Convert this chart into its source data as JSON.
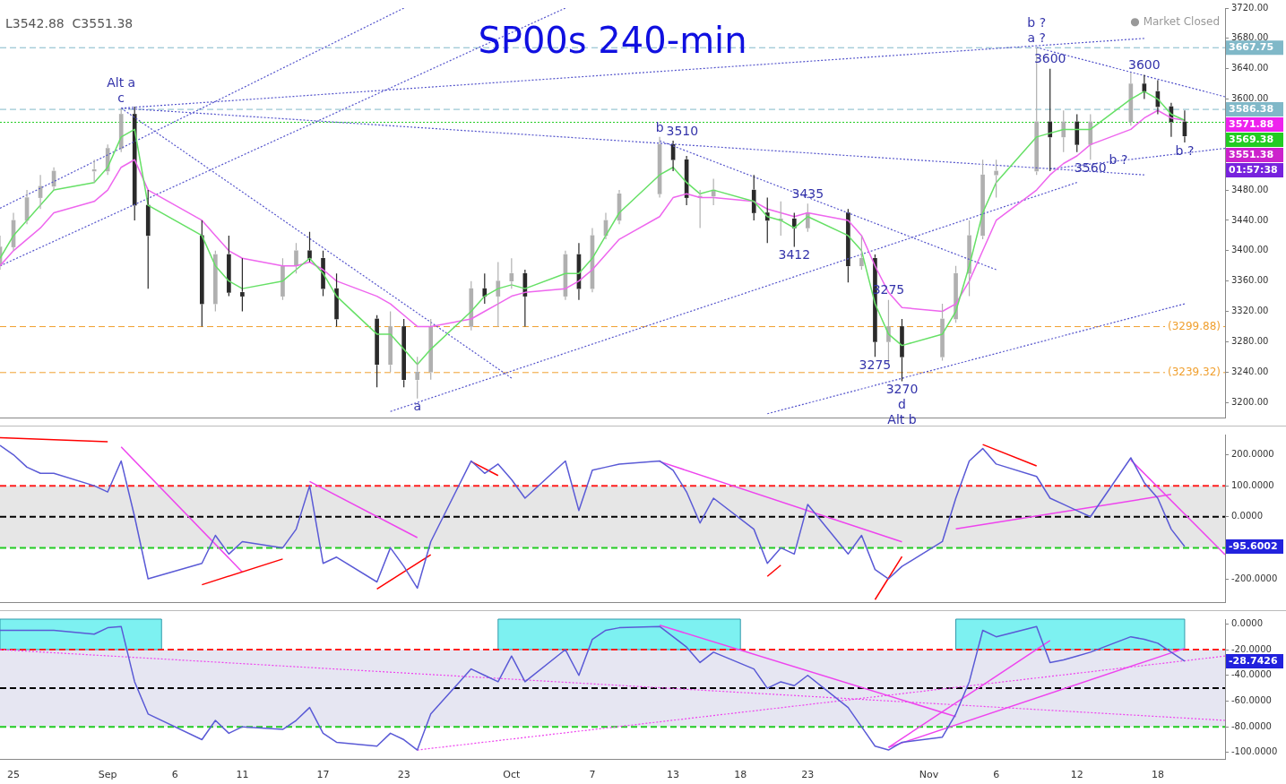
{
  "chart_data": [
    {
      "type": "candlestick",
      "title": "SP00s 240-min",
      "colors": [
        "#b0b0b0",
        "#b0b0b0",
        "#b0b0b0",
        "#b0b0b0",
        "#b0b0b0",
        "#b0b0b0",
        "#b0b0b0",
        "#b0b0b0",
        "#2a2a2a",
        "#2a2a2a",
        "#2a2a2a",
        "#b0b0b0",
        "#2a2a2a",
        "#2a2a2a",
        "#b0b0b0",
        "#b0b0b0",
        "#2a2a2a",
        "#2a2a2a",
        "#2a2a2a",
        "#2a2a2a",
        "#b0b0b0",
        "#2a2a2a",
        "#b0b0b0",
        "#b0b0b0",
        "#b0b0b0",
        "#2a2a2a",
        "#b0b0b0",
        "#b0b0b0",
        "#2a2a2a",
        "#b0b0b0",
        "#2a2a2a",
        "#b0b0b0",
        "#b0b0b0",
        "#b0b0b0",
        "#b0b0b0",
        "#2a2a2a",
        "#2a2a2a",
        "#b0b0b0",
        "#b0b0b0",
        "#2a2a2a",
        "#2a2a2a",
        "#b0b0b0",
        "#2a2a2a",
        "#b0b0b0",
        "#2a2a2a",
        "#b0b0b0",
        "#2a2a2a",
        "#b0b0b0",
        "#2a2a2a",
        "#b0b0b0",
        "#b0b0b0",
        "#b0b0b0",
        "#b0b0b0",
        "#b0b0b0",
        "#b0b0b0",
        "#2a2a2a",
        "#b0b0b0",
        "#2a2a2a",
        "#b0b0b0",
        "#b0b0b0",
        "#2a2a2a",
        "#2a2a2a",
        "#2a2a2a",
        "#2a2a2a"
      ],
      "marker": "none",
      "tick_labels": "y",
      "x": [
        "--08-24",
        "--08-25",
        "--08-26",
        "--08-27",
        "--08-28",
        "--08-31",
        "--09-01",
        "--09-02",
        "--09-03",
        "--09-04",
        "--09-08",
        "--09-09",
        "--09-10",
        "--09-11",
        "--09-14",
        "--09-15",
        "--09-16",
        "--09-17",
        "--09-18",
        "--09-21",
        "--09-22",
        "--09-23",
        "--09-24",
        "--09-25",
        "--09-28",
        "--09-29",
        "--09-30",
        "--10-01",
        "--10-02",
        "--10-05",
        "--10-06",
        "--10-07",
        "--10-08",
        "--10-09",
        "--10-12",
        "--10-13",
        "--10-14",
        "--10-15",
        "--10-16",
        "--10-19",
        "--10-20",
        "--10-21",
        "--10-22",
        "--10-23",
        "--10-26",
        "--10-27",
        "--10-28",
        "--10-29",
        "--10-30",
        "--11-02",
        "--11-03",
        "--11-04",
        "--11-05",
        "--11-06",
        "--11-09",
        "--11-10",
        "--11-11",
        "--11-12",
        "--11-13",
        "--11-16",
        "--11-17",
        "--11-18",
        "--11-19",
        "--11-20"
      ],
      "ohlc": [
        [
          3380,
          3420,
          3375,
          3405
        ],
        [
          3405,
          3450,
          3400,
          3440
        ],
        [
          3440,
          3480,
          3435,
          3470
        ],
        [
          3470,
          3500,
          3455,
          3485
        ],
        [
          3485,
          3510,
          3480,
          3505
        ],
        [
          3505,
          3520,
          3490,
          3507
        ],
        [
          3505,
          3540,
          3500,
          3535
        ],
        [
          3535,
          3588,
          3530,
          3580
        ],
        [
          3580,
          3590,
          3440,
          3460
        ],
        [
          3460,
          3480,
          3350,
          3420
        ],
        [
          3420,
          3440,
          3300,
          3330
        ],
        [
          3330,
          3400,
          3320,
          3395
        ],
        [
          3395,
          3420,
          3340,
          3345
        ],
        [
          3345,
          3390,
          3320,
          3340
        ],
        [
          3340,
          3390,
          3335,
          3380
        ],
        [
          3380,
          3410,
          3370,
          3400
        ],
        [
          3400,
          3425,
          3385,
          3390
        ],
        [
          3390,
          3400,
          3340,
          3350
        ],
        [
          3350,
          3370,
          3300,
          3310
        ],
        [
          3310,
          3315,
          3220,
          3250
        ],
        [
          3250,
          3320,
          3240,
          3300
        ],
        [
          3300,
          3310,
          3220,
          3230
        ],
        [
          3230,
          3260,
          3205,
          3240
        ],
        [
          3240,
          3310,
          3230,
          3300
        ],
        [
          3300,
          3360,
          3295,
          3350
        ],
        [
          3350,
          3370,
          3330,
          3340
        ],
        [
          3340,
          3385,
          3300,
          3360
        ],
        [
          3360,
          3390,
          3350,
          3370
        ],
        [
          3370,
          3375,
          3300,
          3340
        ],
        [
          3340,
          3400,
          3335,
          3395
        ],
        [
          3395,
          3410,
          3335,
          3350
        ],
        [
          3350,
          3430,
          3345,
          3420
        ],
        [
          3420,
          3450,
          3415,
          3440
        ],
        [
          3440,
          3480,
          3435,
          3475
        ],
        [
          3475,
          3550,
          3470,
          3540
        ],
        [
          3540,
          3545,
          3505,
          3520
        ],
        [
          3520,
          3525,
          3460,
          3470
        ],
        [
          3470,
          3480,
          3430,
          3472
        ],
        [
          3472,
          3495,
          3460,
          3480
        ],
        [
          3480,
          3500,
          3440,
          3450
        ],
        [
          3450,
          3470,
          3410,
          3440
        ],
        [
          3440,
          3465,
          3420,
          3442
        ],
        [
          3442,
          3450,
          3405,
          3430
        ],
        [
          3430,
          3462,
          3425,
          3450
        ],
        [
          3450,
          3455,
          3358,
          3380
        ],
        [
          3380,
          3420,
          3375,
          3390
        ],
        [
          3390,
          3395,
          3260,
          3280
        ],
        [
          3280,
          3335,
          3250,
          3300
        ],
        [
          3300,
          3310,
          3228,
          3260
        ],
        [
          3260,
          3330,
          3255,
          3310
        ],
        [
          3310,
          3380,
          3305,
          3370
        ],
        [
          3370,
          3440,
          3340,
          3420
        ],
        [
          3420,
          3520,
          3415,
          3500
        ],
        [
          3500,
          3520,
          3470,
          3505
        ],
        [
          3505,
          3667.75,
          3500,
          3570
        ],
        [
          3570,
          3640,
          3505,
          3550
        ],
        [
          3550,
          3585,
          3530,
          3570
        ],
        [
          3570,
          3580,
          3530,
          3540
        ],
        [
          3540,
          3580,
          3520,
          3570
        ],
        [
          3570,
          3635,
          3565,
          3620
        ],
        [
          3620,
          3632,
          3600,
          3610
        ],
        [
          3610,
          3625,
          3580,
          3590
        ],
        [
          3590,
          3595,
          3550,
          3570
        ],
        [
          3570,
          3585,
          3542.88,
          3551.38
        ]
      ],
      "series": [
        {
          "type": "line",
          "color": "#66e066",
          "line_style": "solid",
          "values": [
            3390,
            3420,
            3440,
            3460,
            3480,
            3490,
            3510,
            3550,
            3560,
            3460,
            3420,
            3380,
            3360,
            3350,
            3360,
            3375,
            3390,
            3370,
            3340,
            3290,
            3290,
            3270,
            3250,
            3270,
            3320,
            3340,
            3350,
            3355,
            3350,
            3370,
            3370,
            3390,
            3420,
            3450,
            3500,
            3510,
            3490,
            3475,
            3480,
            3465,
            3445,
            3440,
            3430,
            3445,
            3420,
            3400,
            3330,
            3290,
            3275,
            3290,
            3320,
            3380,
            3450,
            3490,
            3550,
            3555,
            3560,
            3560,
            3560,
            3600,
            3610,
            3600,
            3580,
            3572
          ]
        },
        {
          "type": "line",
          "color": "#ee66ee",
          "line_style": "solid",
          "values": [
            3380,
            3400,
            3415,
            3430,
            3450,
            3465,
            3480,
            3510,
            3520,
            3480,
            3440,
            3420,
            3400,
            3390,
            3380,
            3380,
            3385,
            3375,
            3360,
            3340,
            3330,
            3315,
            3300,
            3300,
            3310,
            3320,
            3330,
            3340,
            3345,
            3350,
            3360,
            3375,
            3395,
            3415,
            3445,
            3470,
            3475,
            3470,
            3470,
            3465,
            3455,
            3450,
            3445,
            3450,
            3440,
            3420,
            3380,
            3345,
            3325,
            3320,
            3330,
            3360,
            3400,
            3440,
            3480,
            3500,
            3515,
            3525,
            3540,
            3560,
            3575,
            3585,
            3575,
            3572
          ]
        },
        {
          "type": "line",
          "color": "#5555cc",
          "line_style": "dotted",
          "x": [
            "--08-24",
            "--09-23"
          ],
          "values": [
            3456,
            3720
          ]
        },
        {
          "type": "line",
          "color": "#5555cc",
          "line_style": "dotted",
          "x": [
            "--08-24",
            "--10-05"
          ],
          "values": [
            3380,
            3720
          ]
        },
        {
          "type": "line",
          "color": "#5555cc",
          "line_style": "dotted",
          "x": [
            "--09-02",
            "--11-17"
          ],
          "values": [
            3588,
            3680
          ]
        },
        {
          "type": "line",
          "color": "#5555cc",
          "line_style": "dotted",
          "x": [
            "--09-02",
            "--11-17"
          ],
          "values": [
            3588,
            3500
          ]
        },
        {
          "type": "line",
          "color": "#5555cc",
          "line_style": "dotted",
          "x": [
            "--09-02",
            "--10-01"
          ],
          "values": [
            3588,
            3232
          ]
        },
        {
          "type": "line",
          "color": "#5555cc",
          "line_style": "dotted",
          "x": [
            "--09-22",
            "--11-12"
          ],
          "values": [
            3188,
            3490
          ]
        },
        {
          "type": "line",
          "color": "#5555cc",
          "line_style": "dotted",
          "x": [
            "--10-12",
            "--11-06"
          ],
          "values": [
            3545,
            3375
          ]
        },
        {
          "type": "line",
          "color": "#5555cc",
          "line_style": "dotted",
          "x": [
            "--10-20",
            "--11-20"
          ],
          "values": [
            3185,
            3330
          ]
        },
        {
          "type": "line",
          "color": "#5555cc",
          "line_style": "dotted",
          "x": [
            "--11-09",
            "--11-23"
          ],
          "values": [
            3668,
            3603
          ]
        },
        {
          "type": "line",
          "color": "#5555cc",
          "line_style": "dotted",
          "x": [
            "--11-10",
            "--11-23"
          ],
          "values": [
            3508,
            3535
          ]
        }
      ],
      "xlim": [
        "--08-24",
        "--11-23"
      ],
      "ylim": [
        3180,
        3720
      ],
      "yticks": [
        {
          "value": 3200,
          "label": "3200.00"
        },
        {
          "value": 3240,
          "label": "3240.00"
        },
        {
          "value": 3280,
          "label": "3280.00"
        },
        {
          "value": 3320,
          "label": "3320.00"
        },
        {
          "value": 3360,
          "label": "3360.00"
        },
        {
          "value": 3400,
          "label": "3400.00"
        },
        {
          "value": 3440,
          "label": "3440.00"
        },
        {
          "value": 3480,
          "label": "3480.00"
        },
        {
          "value": 3520,
          "label": null
        },
        {
          "value": 3560,
          "label": null
        },
        {
          "value": 3600,
          "label": "3600.00"
        },
        {
          "value": 3640,
          "label": "3640.00"
        },
        {
          "value": 3680,
          "label": "3680.00"
        },
        {
          "value": 3720,
          "label": "3720.00"
        }
      ],
      "ref_lines": [
        {
          "axis": "y",
          "value": 3667.75,
          "label": "3667.75",
          "color": "#80b8c8",
          "line_style": "dashed"
        },
        {
          "axis": "y",
          "value": 3586.38,
          "label": "3586.38",
          "color": "#80b8c8",
          "line_style": "dashed"
        },
        {
          "axis": "y",
          "value": 3569.38,
          "label": "3569.38",
          "color": "#22cc22",
          "line_style": "dotted"
        },
        {
          "axis": "y",
          "value": 3299.88,
          "label": "(3299.88)",
          "color": "#f0a030",
          "line_style": "dashed"
        },
        {
          "axis": "y",
          "value": 3239.32,
          "label": "(3239.32)",
          "color": "#f0a030",
          "line_style": "dashed"
        }
      ],
      "annotations": [
        "L3542.88  C3551.38",
        "● Market Closed",
        "01:57:38",
        "3571.88",
        "3551.38",
        {
          "text": "c",
          "x": "--09-02",
          "y": 3588
        },
        {
          "text": "Alt a",
          "x": "--09-02",
          "y": 3588
        },
        {
          "text": "a",
          "x": "--09-24",
          "y": 3205
        },
        {
          "text": "b",
          "x": "--10-12",
          "y": 3550
        },
        {
          "text": "3510",
          "x": "--10-13",
          "y": 3545
        },
        {
          "text": "3435",
          "x": "--10-23",
          "y": 3462
        },
        {
          "text": "3412",
          "x": "--10-22",
          "y": 3405
        },
        {
          "text": "3275",
          "x": "--10-29",
          "y": 3335
        },
        {
          "text": "3275",
          "x": "--10-28",
          "y": 3260
        },
        {
          "text": "3270",
          "x": "--10-30",
          "y": 3228
        },
        {
          "text": "d",
          "x": "--10-30",
          "y": 3228
        },
        {
          "text": "Alt b",
          "x": "--10-30",
          "y": 3228
        },
        {
          "text": "a ?",
          "x": "--11-09",
          "y": 3667.75
        },
        {
          "text": "b ?",
          "x": "--11-09",
          "y": 3667.75
        },
        {
          "text": "3600",
          "x": "--11-10",
          "y": 3640
        },
        {
          "text": "3560",
          "x": "--11-13",
          "y": 3520
        },
        {
          "text": "b ?",
          "x": "--11-12",
          "y": 3530
        },
        {
          "text": "3600",
          "x": "--11-17",
          "y": 3632
        },
        {
          "text": "b ?",
          "x": "--11-20",
          "y": 3542.88
        }
      ]
    },
    {
      "type": "line",
      "marker": "none",
      "tick_labels": "y",
      "x": [
        "--08-24",
        "--08-25",
        "--08-26",
        "--08-27",
        "--08-28",
        "--08-31",
        "--09-01",
        "--09-02",
        "--09-03",
        "--09-04",
        "--09-08",
        "--09-09",
        "--09-10",
        "--09-11",
        "--09-14",
        "--09-15",
        "--09-16",
        "--09-17",
        "--09-18",
        "--09-21",
        "--09-22",
        "--09-23",
        "--09-24",
        "--09-25",
        "--09-28",
        "--09-29",
        "--09-30",
        "--10-01",
        "--10-02",
        "--10-05",
        "--10-06",
        "--10-07",
        "--10-08",
        "--10-09",
        "--10-12",
        "--10-13",
        "--10-14",
        "--10-15",
        "--10-16",
        "--10-19",
        "--10-20",
        "--10-21",
        "--10-22",
        "--10-23",
        "--10-26",
        "--10-27",
        "--10-28",
        "--10-29",
        "--10-30",
        "--11-02",
        "--11-03",
        "--11-04",
        "--11-05",
        "--11-06",
        "--11-09",
        "--11-10",
        "--11-11",
        "--11-12",
        "--11-13",
        "--11-16",
        "--11-17",
        "--11-18",
        "--11-19",
        "--11-20"
      ],
      "series": [
        {
          "color": "#5a5ad6",
          "line_style": "solid",
          "values": [
            230,
            200,
            160,
            140,
            140,
            100,
            80,
            180,
            0,
            -200,
            -150,
            -60,
            -120,
            -80,
            -100,
            -40,
            100,
            -150,
            -130,
            -210,
            -100,
            -160,
            -230,
            -80,
            180,
            140,
            170,
            120,
            60,
            180,
            20,
            150,
            160,
            170,
            180,
            150,
            80,
            -20,
            60,
            -40,
            -150,
            -100,
            -120,
            40,
            -120,
            -60,
            -170,
            -200,
            -160,
            -80,
            60,
            180,
            220,
            170,
            130,
            60,
            40,
            20,
            0,
            190,
            110,
            60,
            -40,
            -96
          ]
        },
        {
          "color": "#ff0000",
          "line_style": "solid",
          "x": [
            "--08-24",
            "--09-01"
          ],
          "values": [
            255,
            242
          ]
        },
        {
          "color": "#ff0000",
          "line_style": "solid",
          "x": [
            "--09-08",
            "--09-14"
          ],
          "values": [
            -219,
            -136
          ]
        },
        {
          "color": "#ff0000",
          "line_style": "solid",
          "x": [
            "--09-21",
            "--09-25"
          ],
          "values": [
            -233,
            -122
          ]
        },
        {
          "color": "#ff0000",
          "line_style": "solid",
          "x": [
            "--09-28",
            "--09-30"
          ],
          "values": [
            178,
            133
          ]
        },
        {
          "color": "#ff0000",
          "line_style": "solid",
          "x": [
            "--10-20",
            "--10-21"
          ],
          "values": [
            -192,
            -156
          ]
        },
        {
          "color": "#ff0000",
          "line_style": "solid",
          "x": [
            "--10-28",
            "--10-30"
          ],
          "values": [
            -267,
            -128
          ]
        },
        {
          "color": "#ff0000",
          "line_style": "solid",
          "x": [
            "--11-05",
            "--11-09"
          ],
          "values": [
            233,
            164
          ]
        },
        {
          "color": "#ee44ee",
          "line_style": "solid",
          "x": [
            "--09-02",
            "--09-11"
          ],
          "values": [
            225,
            -178
          ]
        },
        {
          "color": "#ee44ee",
          "line_style": "solid",
          "x": [
            "--09-16",
            "--09-24"
          ],
          "values": [
            114,
            -67
          ]
        },
        {
          "color": "#ee44ee",
          "line_style": "solid",
          "x": [
            "--10-12",
            "--10-30"
          ],
          "values": [
            178,
            -81
          ]
        },
        {
          "color": "#ee44ee",
          "line_style": "solid",
          "x": [
            "--11-03",
            "--11-19"
          ],
          "values": [
            -39,
            72
          ]
        },
        {
          "color": "#ee44ee",
          "line_style": "solid",
          "x": [
            "--11-16",
            "--11-23"
          ],
          "values": [
            183,
            -122
          ]
        }
      ],
      "xlim": [
        "--08-24",
        "--11-23"
      ],
      "ylim": [
        -275,
        265
      ],
      "yticks": [
        {
          "value": -200,
          "label": "-200.0000"
        },
        {
          "value": -100,
          "label": null
        },
        {
          "value": 0,
          "label": "0.0000"
        },
        {
          "value": 100,
          "label": "100.0000"
        },
        {
          "value": 200,
          "label": "200.0000"
        }
      ],
      "bands": [
        {
          "axis": "y",
          "from": -100,
          "to": 100,
          "color": "#e6e6e6"
        }
      ],
      "ref_lines": [
        {
          "axis": "y",
          "value": 100,
          "color": "#ff2020",
          "line_style": "dashed"
        },
        {
          "axis": "y",
          "value": 0,
          "color": "#000000",
          "line_style": "dashed"
        },
        {
          "axis": "y",
          "value": -100,
          "color": "#22cc22",
          "line_style": "dashed"
        }
      ],
      "annotations": [
        "-95.6002"
      ]
    },
    {
      "type": "line",
      "marker": "none",
      "x": [
        "--08-24",
        "--08-25",
        "--08-26",
        "--08-27",
        "--08-28",
        "--08-31",
        "--09-01",
        "--09-02",
        "--09-03",
        "--09-04",
        "--09-08",
        "--09-09",
        "--09-10",
        "--09-11",
        "--09-14",
        "--09-15",
        "--09-16",
        "--09-17",
        "--09-18",
        "--09-21",
        "--09-22",
        "--09-23",
        "--09-24",
        "--09-25",
        "--09-28",
        "--09-29",
        "--09-30",
        "--10-01",
        "--10-02",
        "--10-05",
        "--10-06",
        "--10-07",
        "--10-08",
        "--10-09",
        "--10-12",
        "--10-13",
        "--10-14",
        "--10-15",
        "--10-16",
        "--10-19",
        "--10-20",
        "--10-21",
        "--10-22",
        "--10-23",
        "--10-26",
        "--10-27",
        "--10-28",
        "--10-29",
        "--10-30",
        "--11-02",
        "--11-03",
        "--11-04",
        "--11-05",
        "--11-06",
        "--11-09",
        "--11-10",
        "--11-11",
        "--11-12",
        "--11-13",
        "--11-16",
        "--11-17",
        "--11-18",
        "--11-19",
        "--11-20"
      ],
      "series": [
        {
          "color": "#5a5ad6",
          "line_style": "solid",
          "values": [
            -5,
            -5,
            -5,
            -5,
            -5,
            -8,
            -3,
            -2,
            -45,
            -70,
            -90,
            -75,
            -85,
            -80,
            -82,
            -75,
            -65,
            -85,
            -92,
            -95,
            -85,
            -90,
            -98,
            -70,
            -35,
            -40,
            -45,
            -25,
            -45,
            -20,
            -40,
            -12,
            -5,
            -3,
            -2,
            -10,
            -18,
            -30,
            -22,
            -35,
            -50,
            -45,
            -48,
            -40,
            -65,
            -80,
            -95,
            -98,
            -92,
            -88,
            -70,
            -45,
            -5,
            -10,
            -2,
            -30,
            -28,
            -25,
            -22,
            -10,
            -12,
            -15,
            -22,
            -29
          ]
        },
        {
          "color": "#ee44ee",
          "line_style": "solid",
          "x": [
            "--10-12",
            "--11-03"
          ],
          "values": [
            -1,
            -72
          ]
        },
        {
          "color": "#ee44ee",
          "line_style": "solid",
          "x": [
            "--10-29",
            "--11-20"
          ],
          "values": [
            -96,
            -19
          ]
        },
        {
          "color": "#ee44ee",
          "line_style": "solid",
          "x": [
            "--10-29",
            "--11-10"
          ],
          "values": [
            -96,
            -13
          ]
        },
        {
          "color": "#ee44ee",
          "line_style": "dotted",
          "x": [
            "--08-24",
            "--11-23"
          ],
          "values": [
            -20,
            -75
          ]
        },
        {
          "color": "#ee44ee",
          "line_style": "dotted",
          "x": [
            "--09-24",
            "--11-23"
          ],
          "values": [
            -98,
            -25
          ]
        }
      ],
      "xlim": [
        "--08-24",
        "--11-23"
      ],
      "xticks": [
        {
          "value": "--08-25",
          "label": "25"
        },
        {
          "value": "--09-01",
          "label": "Sep"
        },
        {
          "value": "--09-06",
          "label": "6"
        },
        {
          "value": "--09-11",
          "label": "11"
        },
        {
          "value": "--09-17",
          "label": "17"
        },
        {
          "value": "--09-23",
          "label": "23"
        },
        {
          "value": "--10-01",
          "label": "Oct"
        },
        {
          "value": "--10-07",
          "label": "7"
        },
        {
          "value": "--10-13",
          "label": "13"
        },
        {
          "value": "--10-18",
          "label": "18"
        },
        {
          "value": "--10-23",
          "label": "23"
        },
        {
          "value": "--11-01",
          "label": "Nov"
        },
        {
          "value": "--11-06",
          "label": "6"
        },
        {
          "value": "--11-12",
          "label": "12"
        },
        {
          "value": "--11-18",
          "label": "18"
        }
      ],
      "ylim": [
        -105.5,
        3.7
      ],
      "yticks": [
        {
          "value": -100,
          "label": "-100.0000"
        },
        {
          "value": -80,
          "label": "-80.0000"
        },
        {
          "value": -60,
          "label": "-60.0000"
        },
        {
          "value": -40,
          "label": "-40.0000"
        },
        {
          "value": -20,
          "label": "-20.0000"
        },
        {
          "value": 0,
          "label": "0.0000"
        }
      ],
      "bands": [
        {
          "axis": "y",
          "from": -80,
          "to": -20,
          "color": "#e6e6f2"
        },
        {
          "axis": "x",
          "from": "--08-24",
          "to": "--09-05",
          "color": "#66eeee"
        },
        {
          "axis": "x",
          "from": "--09-30",
          "to": "--10-18",
          "color": "#66eeee"
        },
        {
          "axis": "x",
          "from": "--11-03",
          "to": "--11-20",
          "color": "#66eeee"
        }
      ],
      "ref_lines": [
        {
          "axis": "y",
          "value": -20,
          "color": "#ff2020",
          "line_style": "dashed"
        },
        {
          "axis": "y",
          "value": -50,
          "color": "#000000",
          "line_style": "dashed"
        },
        {
          "axis": "y",
          "value": -80,
          "color": "#22cc22",
          "line_style": "dashed"
        }
      ],
      "annotations": [
        "-28.7426"
      ]
    }
  ]
}
